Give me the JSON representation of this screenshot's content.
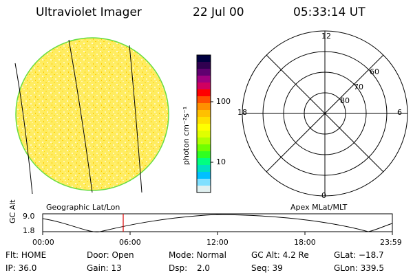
{
  "header": {
    "instrument": "Ultraviolet Imager",
    "date": "22 Jul 00",
    "time": "05:33:14 UT"
  },
  "colorbar": {
    "unit": "photon cm⁻²s⁻¹",
    "ticks": [
      "100",
      "10"
    ],
    "colors": [
      "#000040",
      "#300050",
      "#600070",
      "#a00080",
      "#d00060",
      "#ff0000",
      "#ff5000",
      "#ff9000",
      "#ffc000",
      "#ffe000",
      "#ffff00",
      "#e0ff00",
      "#b0ff00",
      "#70ff00",
      "#30ff20",
      "#00ff80",
      "#00e0c0",
      "#00c0ff",
      "#80e0ff",
      "#e0f0f0"
    ]
  },
  "image_panel": {
    "label": "Geographic Lat/Lon",
    "disk_color": "#ffec60",
    "edge_color": "#66dd44"
  },
  "polar_panel": {
    "label": "Apex MLat/MLT",
    "lat_labels": [
      "80",
      "70",
      "60"
    ],
    "mlt_labels": {
      "top": "12",
      "left": "18",
      "right": "6",
      "bottom": "0"
    }
  },
  "timeline": {
    "axis_label": "GC Alt",
    "y_ticks": [
      "9.0",
      "1.8"
    ],
    "x_ticks": [
      "00:00",
      "06:00",
      "12:00",
      "18:00",
      "23:59"
    ],
    "marker_time": "05:33",
    "marker_color": "#dd0000"
  },
  "info": {
    "flt_label": "Flt:",
    "flt_value": "HOME",
    "door_label": "Door:",
    "door_value": "Open",
    "mode_label": "Mode:",
    "mode_value": "Normal",
    "gcalt_label": "GC Alt:",
    "gcalt_value": "4.2 Re",
    "glat_label": "GLat:",
    "glat_value": "−18.7",
    "ip_label": "IP:",
    "ip_value": "36.0",
    "gain_label": "Gain:",
    "gain_value": "13",
    "dsp_label": "Dsp:",
    "dsp_value": "2.0",
    "seq_label": "Seq:",
    "seq_value": "39",
    "glon_label": "GLon:",
    "glon_value": "339.5"
  }
}
